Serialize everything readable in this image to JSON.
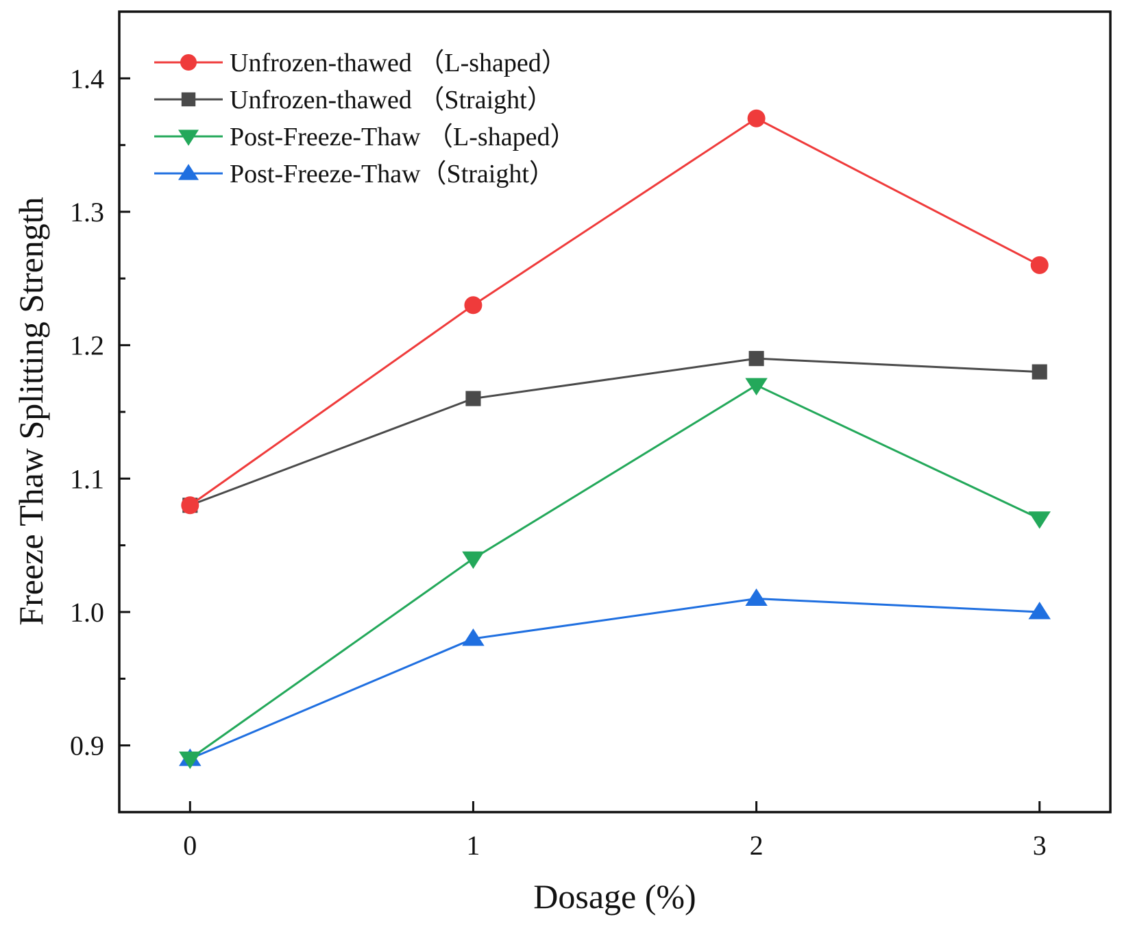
{
  "chart_data": {
    "type": "line",
    "title": "",
    "xlabel": "Dosage (%)",
    "ylabel": "Freeze Thaw Splitting Strength",
    "x": [
      0,
      1,
      2,
      3
    ],
    "x_tick_labels": [
      "0",
      "1",
      "2",
      "3"
    ],
    "y_tick_labels": [
      "0.9",
      "1.0",
      "1.1",
      "1.2",
      "1.3",
      "1.4"
    ],
    "y_ticks": [
      0.9,
      1.0,
      1.1,
      1.2,
      1.3,
      1.4
    ],
    "xlim": [
      -0.25,
      3.25
    ],
    "ylim": [
      0.85,
      1.45
    ],
    "grid": false,
    "legend_position": "top-left",
    "series": [
      {
        "name": "Unfrozen-thawed （L-shaped）",
        "color": "#ef3b3b",
        "marker": "circle",
        "values": [
          1.08,
          1.23,
          1.37,
          1.26
        ]
      },
      {
        "name": "Unfrozen-thawed （Straight）",
        "color": "#4a4a4a",
        "marker": "square",
        "values": [
          1.08,
          1.16,
          1.19,
          1.18
        ]
      },
      {
        "name": "Post-Freeze-Thaw （L-shaped）",
        "color": "#23a85a",
        "marker": "triangle-down",
        "values": [
          0.89,
          1.04,
          1.17,
          1.07
        ]
      },
      {
        "name": "Post-Freeze-Thaw（Straight）",
        "color": "#1f6fe0",
        "marker": "triangle-up",
        "values": [
          0.89,
          0.98,
          1.01,
          1.0
        ]
      }
    ]
  }
}
